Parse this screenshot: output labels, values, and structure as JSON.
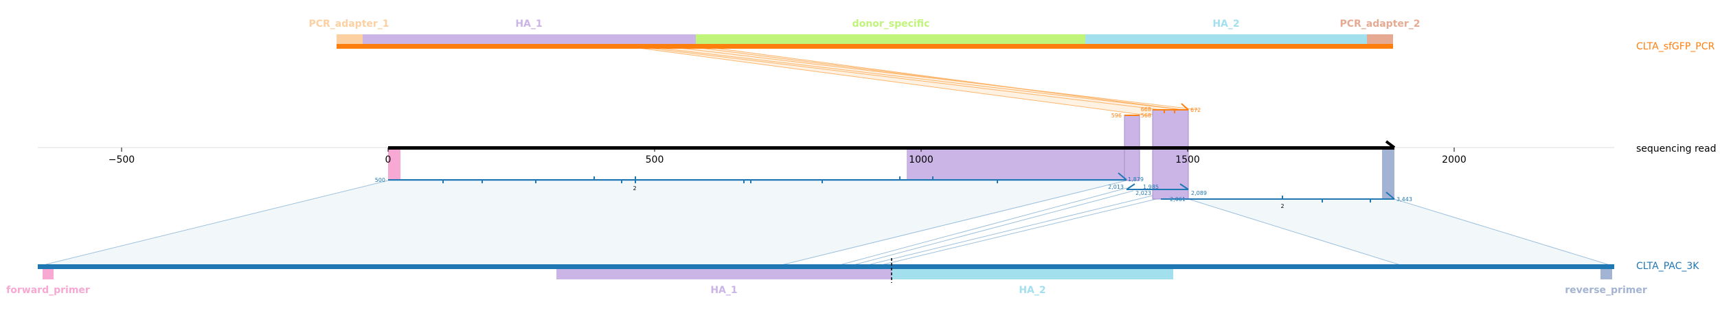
{
  "colors": {
    "pcr_track": "#ff7f0e",
    "pac_track": "#1f77b4",
    "read_track": "#000000",
    "pcr_adapter_1": "#fdd0a2",
    "ha_1": "#cbb5e6",
    "donor_specific": "#c0f57a",
    "ha_2": "#a3e0ee",
    "pcr_adapter_2": "#e6a991",
    "forward_primer": "#f7a8d3",
    "reverse_primer": "#a3b3d3"
  },
  "tracks": {
    "pcr": {
      "name": "CLTA_sfGFP_PCR"
    },
    "read": {
      "name": "sequencing read"
    },
    "pac": {
      "name": "CLTA_PAC_3K"
    }
  },
  "pcr_features": [
    {
      "label": "PCR_adapter_1",
      "color": "#fdd0a2"
    },
    {
      "label": "HA_1",
      "color": "#cbb5e6"
    },
    {
      "label": "donor_specific",
      "color": "#c0f57a"
    },
    {
      "label": "HA_2",
      "color": "#a3e0ee"
    },
    {
      "label": "PCR_adapter_2",
      "color": "#e6a991"
    }
  ],
  "pac_features": [
    {
      "label": "forward_primer",
      "color": "#f7a8d3"
    },
    {
      "label": "HA_1",
      "color": "#cbb5e6"
    },
    {
      "label": "HA_2",
      "color": "#a3e0ee"
    },
    {
      "label": "reverse_primer",
      "color": "#a3b3d3"
    }
  ],
  "read_axis": {
    "ticks": [
      -500,
      0,
      500,
      1000,
      1500,
      2000
    ],
    "tick_labels": [
      "−500",
      "0",
      "500",
      "1000",
      "1500",
      "2000"
    ],
    "read_start": 0,
    "read_end": 1885
  },
  "alignments": [
    {
      "target": "pac",
      "read_range": [
        0,
        1380
      ],
      "start_label": "500",
      "end_label": "1,879",
      "target_range": [
        0,
        2930
      ],
      "count_label": "2"
    },
    {
      "target": "pac",
      "read_range": [
        1380,
        1500
      ],
      "start_label": "2,013",
      "end_label": "1,985",
      "inner_labels": [
        "2,023",
        "2,089"
      ],
      "target_range": [
        1410,
        1590
      ]
    },
    {
      "target": "pac",
      "read_range": [
        1500,
        1885
      ],
      "start_label": "2,061",
      "end_label": "3,443",
      "target_range": [
        1590,
        2930
      ],
      "count_label": "2"
    },
    {
      "target": "pcr",
      "read_range": [
        1380,
        1500
      ],
      "start_label": "596",
      "mid_labels": [
        "668",
        "568"
      ],
      "end_label": "672"
    }
  ]
}
